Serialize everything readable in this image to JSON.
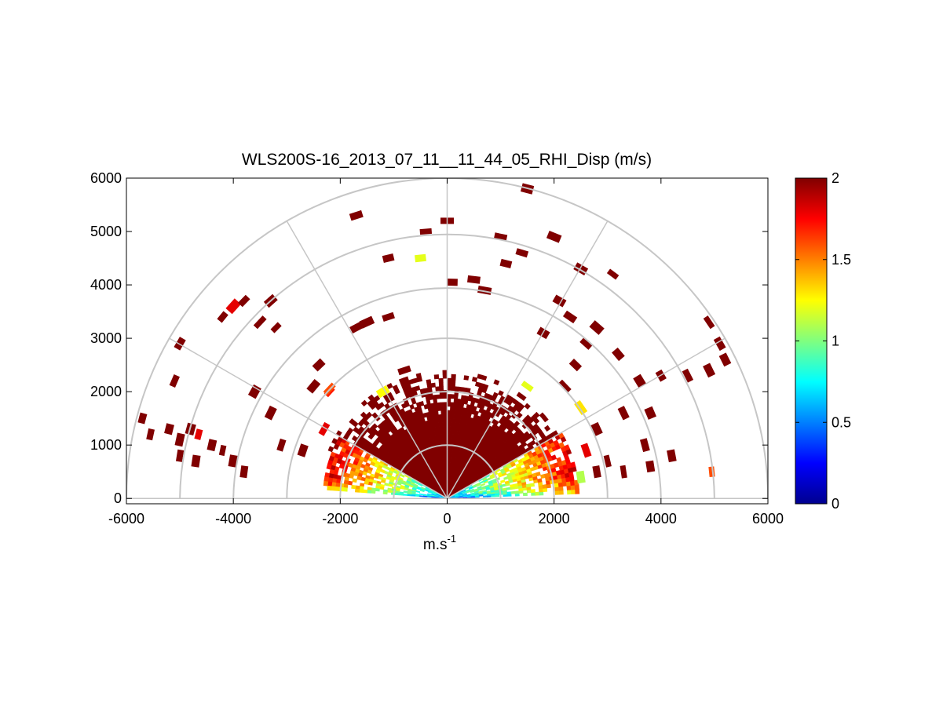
{
  "chart_data": {
    "type": "heatmap",
    "subtype": "polar-rhi-scan",
    "title": "WLS200S-16_2013_07_11__11_44_05_RHI_Disp (m/s)",
    "xlabel": "m.s",
    "xlabel_superscript": "-1",
    "ylabel": "",
    "xlim": [
      -6000,
      6000
    ],
    "ylim": [
      -100,
      6000
    ],
    "x_ticks": [
      "-6000",
      "-4000",
      "-2000",
      "0",
      "2000",
      "4000",
      "6000"
    ],
    "y_ticks": [
      "0",
      "1000",
      "2000",
      "3000",
      "4000",
      "5000",
      "6000"
    ],
    "polar_grid": {
      "range_rings": [
        1000,
        2000,
        3000,
        4000,
        5000,
        6000
      ],
      "spoke_angles_deg": [
        0,
        30,
        60,
        90,
        120,
        150,
        180
      ]
    },
    "colorbar": {
      "min": 0,
      "max": 2,
      "tick_labels": [
        "0",
        "0.5",
        "1",
        "1.5",
        "2"
      ],
      "colormap": "jet"
    },
    "regions": [
      {
        "name": "dense-core",
        "range_max": 2400,
        "angle_min_deg": 14,
        "angle_max_deg": 166,
        "value": 2.0
      },
      {
        "name": "left-low-angle-gradient",
        "range_max": 2300,
        "angle_min_deg": 150,
        "angle_max_deg": 176,
        "value_near": 0.6,
        "value_far": 1.8
      },
      {
        "name": "right-low-angle-gradient",
        "range_max": 2500,
        "angle_min_deg": 3,
        "angle_max_deg": 30,
        "value_near": 0.6,
        "value_far": 1.8
      }
    ],
    "scattered_points": [
      {
        "x": -5700,
        "y": 1500,
        "v": 2.0
      },
      {
        "x": -5550,
        "y": 1200,
        "v": 2.0
      },
      {
        "x": -5200,
        "y": 1300,
        "v": 2.0
      },
      {
        "x": -5000,
        "y": 1100,
        "v": 2.0
      },
      {
        "x": -4800,
        "y": 1300,
        "v": 2.0
      },
      {
        "x": -4650,
        "y": 1200,
        "v": 1.8
      },
      {
        "x": -4400,
        "y": 1000,
        "v": 2.0
      },
      {
        "x": -4200,
        "y": 900,
        "v": 2.0
      },
      {
        "x": -5000,
        "y": 800,
        "v": 2.0
      },
      {
        "x": -4700,
        "y": 700,
        "v": 2.0
      },
      {
        "x": -4000,
        "y": 700,
        "v": 2.0
      },
      {
        "x": -3800,
        "y": 500,
        "v": 2.0
      },
      {
        "x": -5100,
        "y": 2200,
        "v": 2.0
      },
      {
        "x": -5000,
        "y": 2900,
        "v": 2.0
      },
      {
        "x": -4200,
        "y": 3400,
        "v": 2.0
      },
      {
        "x": -4000,
        "y": 3600,
        "v": 1.8
      },
      {
        "x": -3800,
        "y": 3700,
        "v": 2.0
      },
      {
        "x": -3500,
        "y": 3300,
        "v": 2.0
      },
      {
        "x": -3300,
        "y": 3700,
        "v": 2.0
      },
      {
        "x": -3200,
        "y": 3200,
        "v": 2.0
      },
      {
        "x": -3600,
        "y": 2000,
        "v": 2.0
      },
      {
        "x": -3300,
        "y": 1600,
        "v": 2.0
      },
      {
        "x": -3100,
        "y": 1000,
        "v": 2.0
      },
      {
        "x": -2700,
        "y": 900,
        "v": 2.0
      },
      {
        "x": -2500,
        "y": 2100,
        "v": 2.0
      },
      {
        "x": -2400,
        "y": 2500,
        "v": 2.0
      },
      {
        "x": -2200,
        "y": 2000,
        "v": 1.7
      },
      {
        "x": -2300,
        "y": 1300,
        "v": 1.8
      },
      {
        "x": -1700,
        "y": 3200,
        "v": 2.0
      },
      {
        "x": -1500,
        "y": 3300,
        "v": 2.0
      },
      {
        "x": -1100,
        "y": 3400,
        "v": 2.0
      },
      {
        "x": -1100,
        "y": 4500,
        "v": 2.0
      },
      {
        "x": -500,
        "y": 4500,
        "v": 1.2
      },
      {
        "x": -1700,
        "y": 5300,
        "v": 2.0
      },
      {
        "x": -400,
        "y": 5000,
        "v": 2.0
      },
      {
        "x": 0,
        "y": 5200,
        "v": 2.0
      },
      {
        "x": 100,
        "y": 4050,
        "v": 2.0
      },
      {
        "x": 500,
        "y": 4100,
        "v": 2.0
      },
      {
        "x": 700,
        "y": 3900,
        "v": 2.0
      },
      {
        "x": 1000,
        "y": 4900,
        "v": 2.0
      },
      {
        "x": 1100,
        "y": 4400,
        "v": 2.0
      },
      {
        "x": 1400,
        "y": 4600,
        "v": 2.0
      },
      {
        "x": 1500,
        "y": 5800,
        "v": 2.0
      },
      {
        "x": 2000,
        "y": 4900,
        "v": 2.0
      },
      {
        "x": 2500,
        "y": 4300,
        "v": 2.0
      },
      {
        "x": 3100,
        "y": 4200,
        "v": 2.0
      },
      {
        "x": 2100,
        "y": 3700,
        "v": 2.0
      },
      {
        "x": 2300,
        "y": 3400,
        "v": 2.0
      },
      {
        "x": 2800,
        "y": 3200,
        "v": 2.0
      },
      {
        "x": 2600,
        "y": 2900,
        "v": 2.0
      },
      {
        "x": 1800,
        "y": 3100,
        "v": 2.0
      },
      {
        "x": 3200,
        "y": 2700,
        "v": 2.0
      },
      {
        "x": 3600,
        "y": 2200,
        "v": 2.0
      },
      {
        "x": 3300,
        "y": 1600,
        "v": 2.0
      },
      {
        "x": 3800,
        "y": 1600,
        "v": 2.0
      },
      {
        "x": 3700,
        "y": 1000,
        "v": 2.0
      },
      {
        "x": 2800,
        "y": 1300,
        "v": 2.0
      },
      {
        "x": 2600,
        "y": 900,
        "v": 1.8
      },
      {
        "x": 3000,
        "y": 700,
        "v": 2.0
      },
      {
        "x": 3300,
        "y": 500,
        "v": 2.0
      },
      {
        "x": 4200,
        "y": 800,
        "v": 2.0
      },
      {
        "x": 3800,
        "y": 600,
        "v": 2.0
      },
      {
        "x": 4000,
        "y": 2300,
        "v": 2.0
      },
      {
        "x": 4500,
        "y": 2300,
        "v": 2.0
      },
      {
        "x": 4900,
        "y": 3300,
        "v": 2.0
      },
      {
        "x": 5100,
        "y": 2900,
        "v": 2.0
      },
      {
        "x": 5200,
        "y": 2600,
        "v": 2.0
      },
      {
        "x": 4900,
        "y": 2400,
        "v": 2.0
      },
      {
        "x": 4950,
        "y": 500,
        "v": 1.6
      },
      {
        "x": 2400,
        "y": 2500,
        "v": 2.0
      },
      {
        "x": 2200,
        "y": 2100,
        "v": 2.0
      },
      {
        "x": 2500,
        "y": 1700,
        "v": 1.3
      },
      {
        "x": 1500,
        "y": 2100,
        "v": 1.2
      },
      {
        "x": 2500,
        "y": 400,
        "v": 1.1
      },
      {
        "x": 2800,
        "y": 500,
        "v": 2.0
      },
      {
        "x": -2200,
        "y": 2050,
        "v": 1.6
      },
      {
        "x": -1200,
        "y": 2000,
        "v": 1.25
      },
      {
        "x": -800,
        "y": 2400,
        "v": 2.0
      }
    ]
  }
}
